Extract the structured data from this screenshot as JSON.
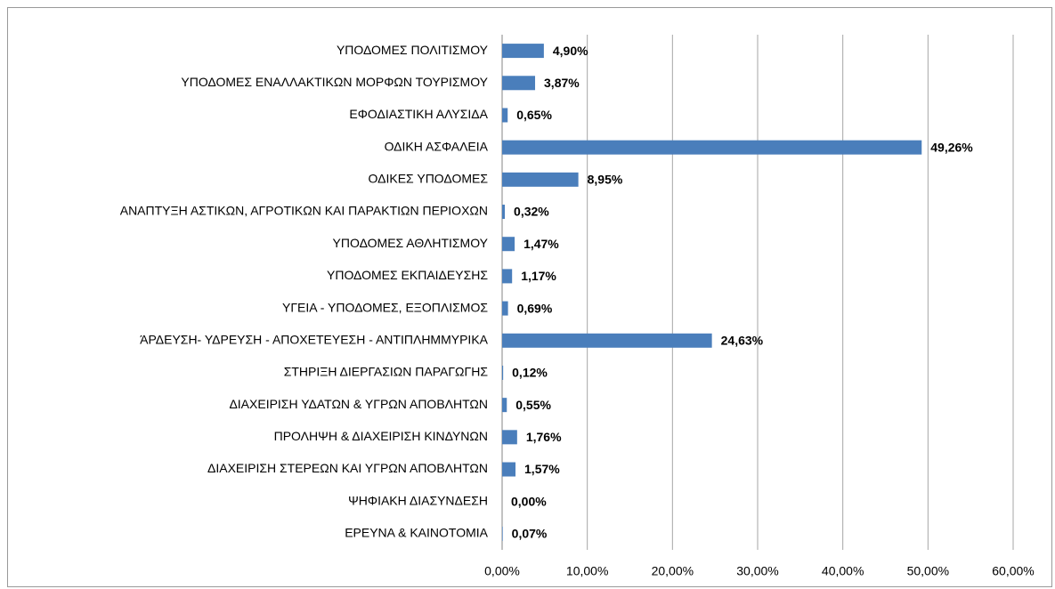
{
  "chart_data": {
    "type": "hbar",
    "categories": [
      "ΥΠΟΔΟΜΕΣ ΠΟΛΙΤΙΣΜΟΥ",
      "ΥΠΟΔΟΜΕΣ ΕΝΑΛΛΑΚΤΙΚΩΝ ΜΟΡΦΩΝ ΤΟΥΡΙΣΜΟΥ",
      "ΕΦΟΔΙΑΣΤΙΚΗ ΑΛΥΣΙΔΑ",
      "ΟΔΙΚΗ ΑΣΦΑΛΕΙΑ",
      "ΟΔΙΚΕΣ ΥΠΟΔΟΜΕΣ",
      "ΑΝΑΠΤΥΞΗ ΑΣΤΙΚΩΝ, ΑΓΡΟΤΙΚΩΝ ΚΑΙ ΠΑΡΑΚΤΙΩΝ ΠΕΡΙΟΧΩΝ",
      "ΥΠΟΔΟΜΕΣ ΑΘΛΗΤΙΣΜΟΥ",
      "ΥΠΟΔΟΜΕΣ ΕΚΠΑΙΔΕΥΣΗΣ",
      "ΥΓΕΙΑ - ΥΠΟΔΟΜΕΣ, ΕΞΟΠΛΙΣΜΟΣ",
      "ΆΡΔΕΥΣΗ- ΥΔΡΕΥΣΗ - ΑΠΟΧΕΤΕΥΕΣΗ - ΑΝΤΙΠΛΗΜΜΥΡΙΚΑ",
      "ΣΤΗΡΙΞΗ ΔΙΕΡΓΑΣΙΩΝ ΠΑΡΑΓΩΓΗΣ",
      "ΔΙΑΧΕΙΡΙΣΗ ΥΔΑΤΩΝ & ΥΓΡΩΝ ΑΠΟΒΛΗΤΩΝ",
      "ΠΡΟΛΗΨΗ & ΔΙΑΧΕΙΡΙΣΗ ΚΙΝΔΥΝΩΝ",
      "ΔΙΑΧΕΙΡΙΣΗ ΣΤΕΡΕΩΝ ΚΑΙ ΥΓΡΩΝ ΑΠΟΒΛΗΤΩΝ",
      "ΨΗΦΙΑΚΗ ΔΙΑΣΥΝΔΕΣΗ",
      "ΕΡΕΥΝΑ & ΚΑΙΝΟΤΟΜΙΑ"
    ],
    "values": [
      4.9,
      3.87,
      0.65,
      49.26,
      8.95,
      0.32,
      1.47,
      1.17,
      0.69,
      24.63,
      0.12,
      0.55,
      1.76,
      1.57,
      0,
      0.07
    ],
    "value_labels": [
      "4,90%",
      "3,87%",
      "0,65%",
      "49,26%",
      "8,95%",
      "0,32%",
      "1,47%",
      "1,17%",
      "0,69%",
      "24,63%",
      "0,12%",
      "0,55%",
      "1,76%",
      "1,57%",
      "0,00%",
      "0,07%"
    ],
    "color": "#4a7ebb",
    "xlim": [
      0,
      60
    ],
    "xticks": [
      {
        "value": 0,
        "label": "0,00%"
      },
      {
        "value": 10,
        "label": "10,00%"
      },
      {
        "value": 20,
        "label": "20,00%"
      },
      {
        "value": 30,
        "label": "30,00%"
      },
      {
        "value": 40,
        "label": "40,00%"
      },
      {
        "value": 50,
        "label": "50,00%"
      },
      {
        "value": 60,
        "label": "60,00%"
      }
    ],
    "grid": true
  }
}
